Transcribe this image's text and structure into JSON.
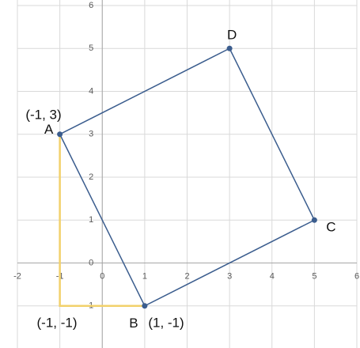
{
  "chart_data": {
    "type": "scatter",
    "xlim": [
      -2,
      6
    ],
    "ylim": [
      -2,
      6
    ],
    "xticks": [
      -2,
      -1,
      0,
      1,
      2,
      3,
      4,
      5,
      6
    ],
    "yticks": [
      -1,
      0,
      1,
      2,
      3,
      4,
      5,
      6
    ],
    "grid": true,
    "series": [
      {
        "color": "#3b5d8e",
        "x": [
          -1,
          1,
          5,
          3
        ],
        "values": [
          3,
          -1,
          1,
          5
        ],
        "closed": true,
        "markers": true,
        "point_labels": [
          "A",
          "B",
          "C",
          "D"
        ]
      },
      {
        "color": "#f2d16b",
        "x": [
          -1,
          -1,
          1
        ],
        "values": [
          3,
          -1,
          -1
        ],
        "closed": false,
        "markers": false
      }
    ],
    "annotations": [
      "(-1, 3)",
      "(-1, -1)",
      "(1, -1)"
    ]
  }
}
